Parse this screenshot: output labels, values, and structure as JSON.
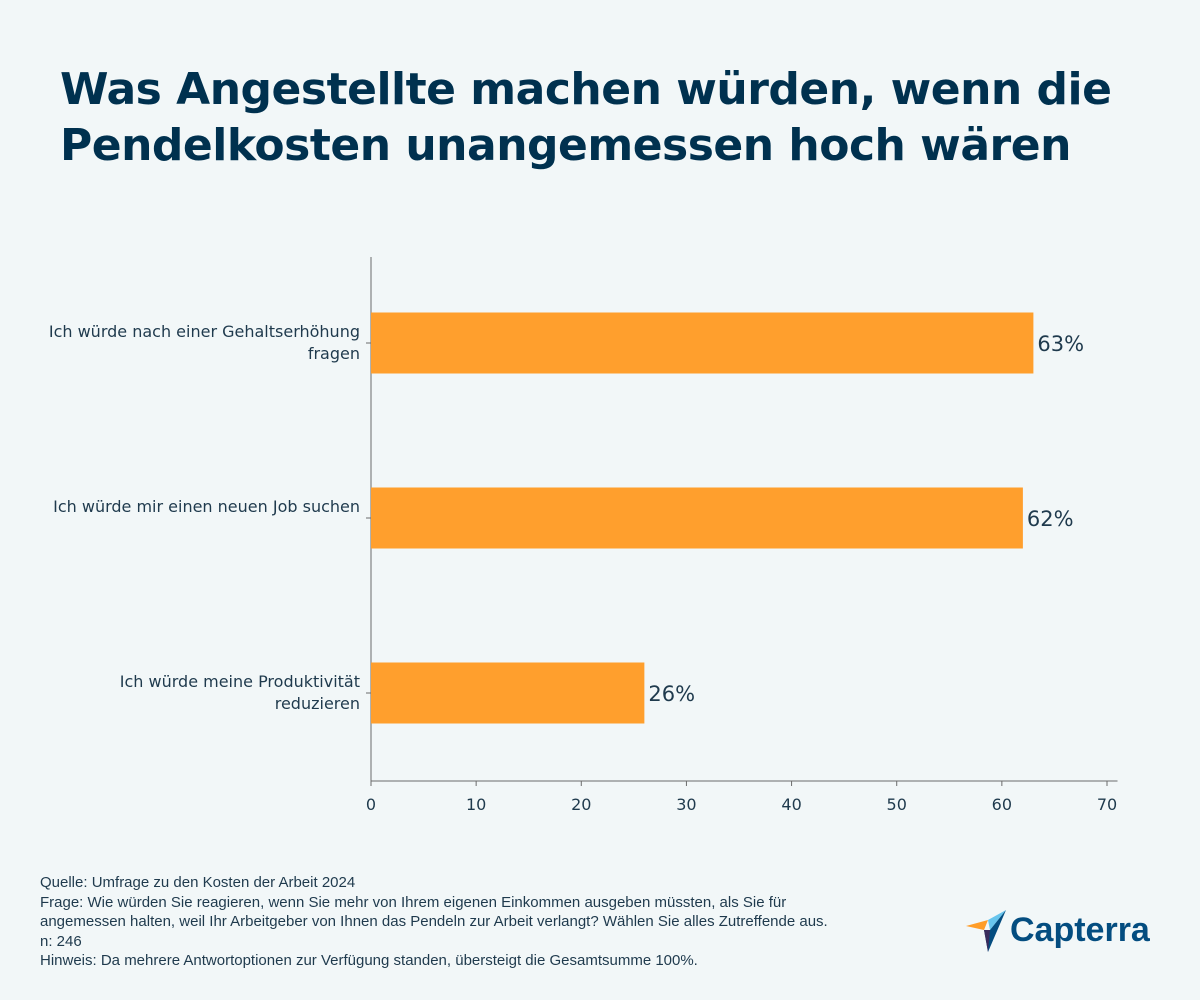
{
  "title": "Was Angestellte machen würden, wenn die Pendelkosten unangemessen hoch wären",
  "chart_data": {
    "type": "bar",
    "orientation": "horizontal",
    "categories": [
      "Ich würde nach einer Gehaltserhöhung fragen",
      "Ich würde mir einen neuen Job suchen",
      "Ich würde meine Produktivität reduzieren"
    ],
    "values": [
      63,
      62,
      26
    ],
    "data_labels": [
      "63%",
      "62%",
      "26%"
    ],
    "xlim": [
      0,
      71
    ],
    "xticks": [
      0,
      10,
      20,
      30,
      40,
      50,
      60,
      70
    ],
    "xlabel": "",
    "ylabel": "",
    "grid": false,
    "bar_color": "#ff9f2d"
  },
  "footer": {
    "source": "Quelle: Umfrage zu den Kosten der Arbeit 2024",
    "question_line1": "Frage: Wie würden Sie reagieren, wenn Sie mehr von Ihrem eigenen Einkommen ausgeben müssten, als Sie für",
    "question_line2": "angemessen halten, weil Ihr Arbeitgeber von Ihnen das Pendeln zur Arbeit verlangt? Wählen Sie alles Zutreffende aus.",
    "n": "n: 246",
    "note": "Hinweis: Da mehrere Antwortoptionen zur Verfügung standen, übersteigt die Gesamtsumme 100%."
  },
  "logo": {
    "text": "Capterra"
  }
}
